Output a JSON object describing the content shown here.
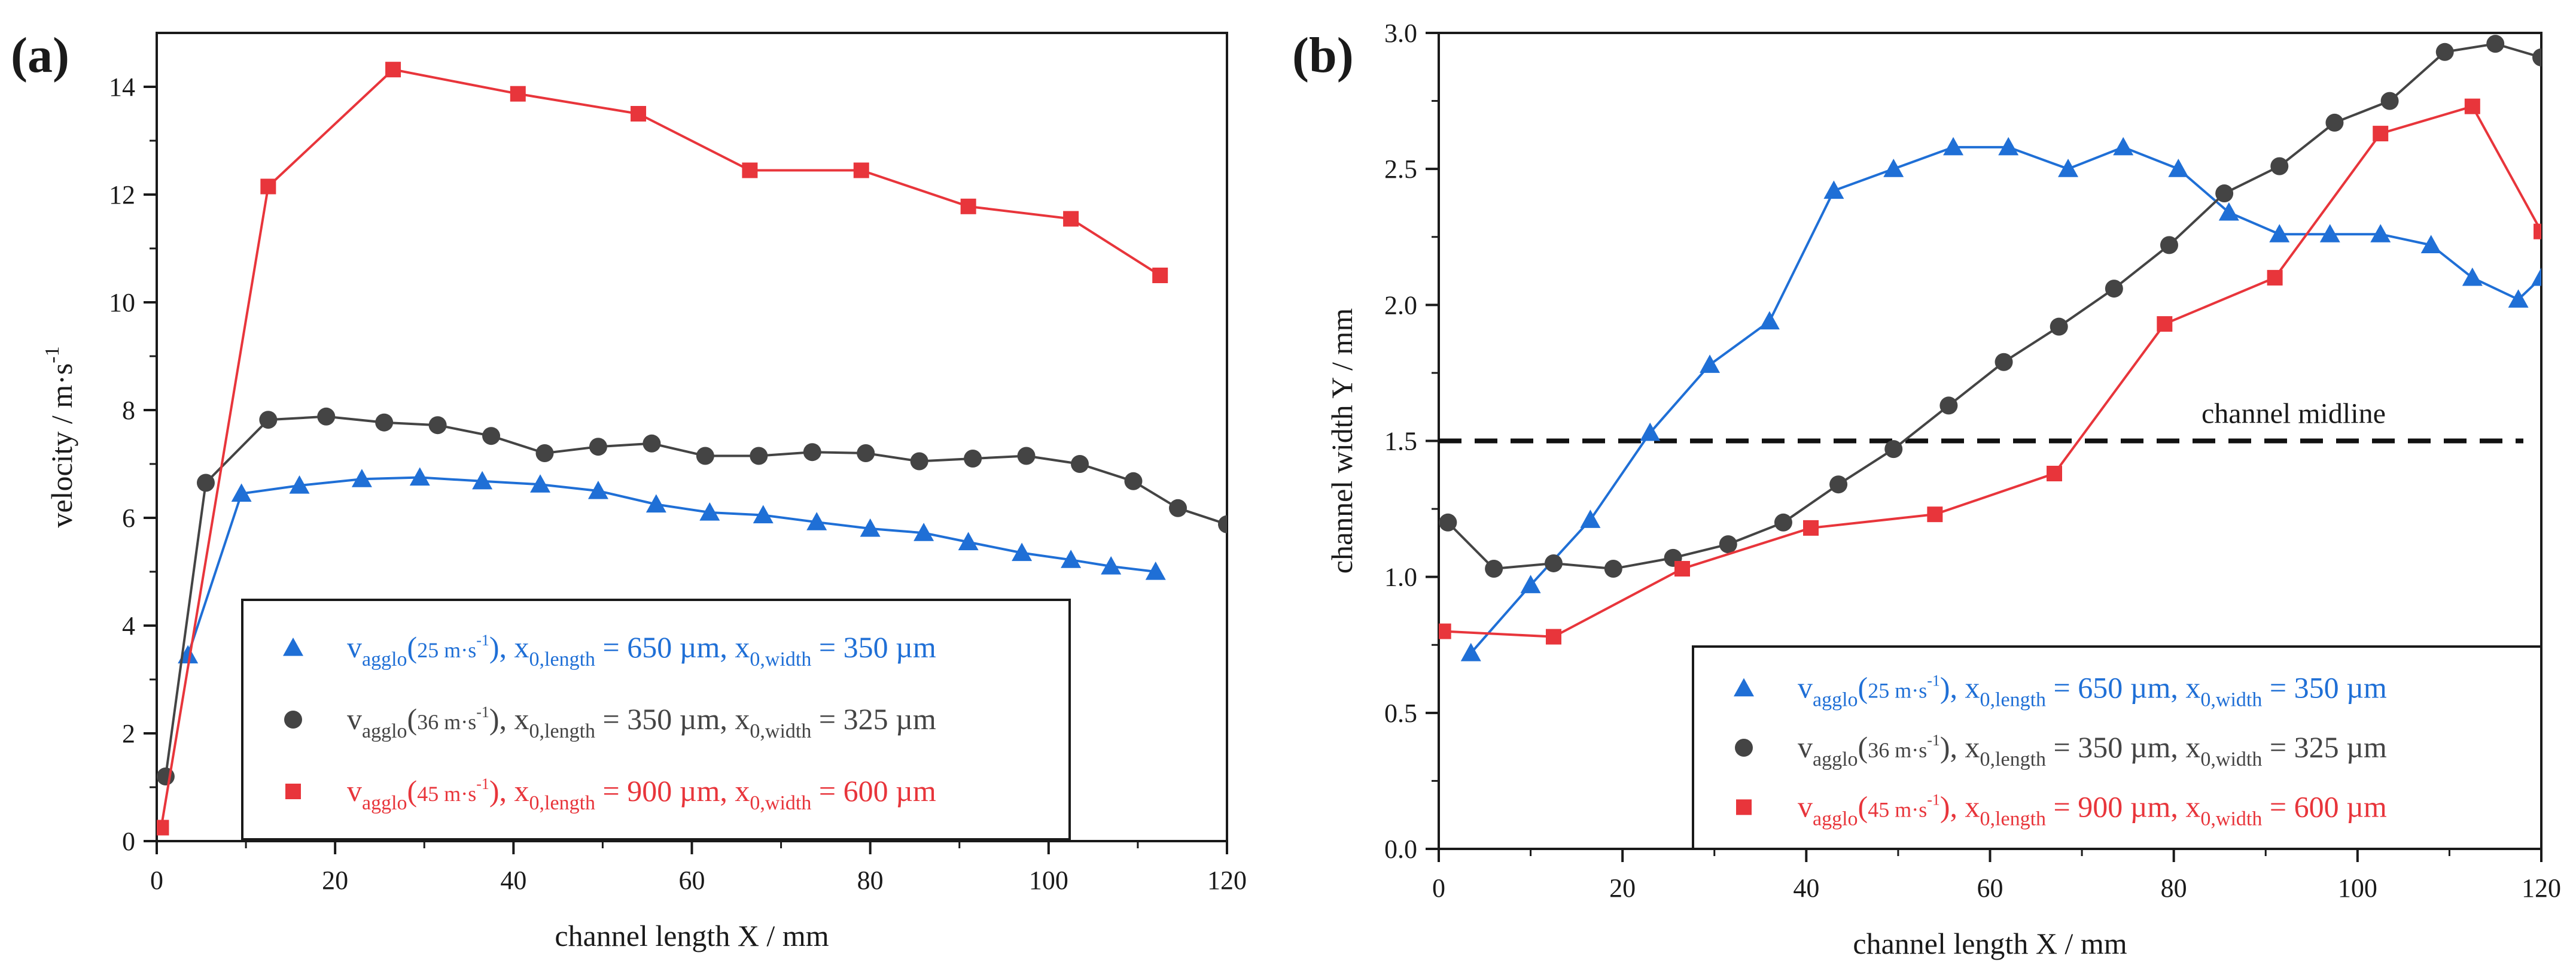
{
  "colors": {
    "blue": "#1f6fd6",
    "gray": "#444444",
    "red": "#e8353b",
    "axis": "#1a1a1a"
  },
  "legend_entries": [
    {
      "id": "blue",
      "base": "v",
      "sub": "agglo",
      "inner": "25 m·s",
      "sup": "-1",
      "l_label": "x",
      "l_sub": "0,length",
      "l_val": " = 650 µm, ",
      "w_label": "x",
      "w_sub": "0,width",
      "w_val": " = 350 µm"
    },
    {
      "id": "gray",
      "base": "v",
      "sub": "agglo",
      "inner": "36 m·s",
      "sup": "-1",
      "l_label": "x",
      "l_sub": "0,length",
      "l_val": " = 350 µm, ",
      "w_label": "x",
      "w_sub": "0,width",
      "w_val": " = 325 µm"
    },
    {
      "id": "red",
      "base": "v",
      "sub": "agglo",
      "inner": "45 m·s",
      "sup": "-1",
      "l_label": "x",
      "l_sub": "0,length",
      "l_val": " = 900 µm, ",
      "w_label": "x",
      "w_sub": "0,width",
      "w_val": " = 600 µm"
    }
  ],
  "chart_data": [
    {
      "panel": "(a)",
      "type": "line",
      "xlabel": "channel length X / mm",
      "ylabel": "velocity / m·s",
      "ylabel_sup": "-1",
      "xlim": [
        0,
        120
      ],
      "ylim": [
        0,
        15
      ],
      "xticks": [
        "0",
        "20",
        "40",
        "60",
        "80",
        "100",
        "120"
      ],
      "yticks": [
        "0",
        "2",
        "4",
        "6",
        "8",
        "10",
        "12",
        "14"
      ],
      "legend_position": "bottom-right",
      "series": [
        {
          "id": "blue",
          "marker": "triangle",
          "x": [
            3.5,
            9.5,
            16,
            23,
            29.5,
            36.5,
            43,
            49.5,
            56,
            62,
            68,
            74,
            80,
            86,
            91,
            97,
            102.5,
            107,
            112
          ],
          "y": [
            3.45,
            6.45,
            6.6,
            6.72,
            6.75,
            6.68,
            6.62,
            6.5,
            6.25,
            6.1,
            6.05,
            5.92,
            5.8,
            5.72,
            5.55,
            5.35,
            5.22,
            5.1,
            5.0
          ]
        },
        {
          "id": "gray",
          "marker": "circle",
          "x": [
            1,
            5.5,
            12.5,
            19,
            25.5,
            31.5,
            37.5,
            43.5,
            49.5,
            55.5,
            61.5,
            67.5,
            73.5,
            79.5,
            85.5,
            91.5,
            97.5,
            103.5,
            109.5,
            114.5,
            120
          ],
          "y": [
            1.2,
            6.65,
            7.82,
            7.88,
            7.77,
            7.72,
            7.52,
            7.2,
            7.32,
            7.38,
            7.15,
            7.15,
            7.22,
            7.2,
            7.05,
            7.1,
            7.15,
            7.0,
            6.68,
            6.18,
            5.88
          ]
        },
        {
          "id": "red",
          "marker": "square",
          "x": [
            0.5,
            12.5,
            26.5,
            40.5,
            54,
            66.5,
            79,
            91,
            102.5,
            112.5
          ],
          "y": [
            0.25,
            12.15,
            14.32,
            13.87,
            13.5,
            12.45,
            12.45,
            11.78,
            11.55,
            10.5
          ]
        }
      ]
    },
    {
      "panel": "(b)",
      "type": "line",
      "xlabel": "channel length X / mm",
      "ylabel": "channel width Y / mm",
      "xlim": [
        0,
        120
      ],
      "ylim": [
        0,
        3.0
      ],
      "xticks": [
        "0",
        "20",
        "40",
        "60",
        "80",
        "100",
        "120"
      ],
      "yticks": [
        "0.0",
        "0.5",
        "1.0",
        "1.5",
        "2.0",
        "2.5",
        "3.0"
      ],
      "legend_position": "bottom-right",
      "annotation": {
        "text": "channel midline",
        "y": 1.5
      },
      "series": [
        {
          "id": "blue",
          "marker": "triangle",
          "x": [
            3.5,
            10,
            16.5,
            23,
            29.5,
            36,
            43,
            49.5,
            56,
            62,
            68.5,
            74.5,
            80.5,
            86,
            91.5,
            97,
            102.5,
            108,
            112.5,
            117.5,
            120
          ],
          "y": [
            0.72,
            0.97,
            1.21,
            1.53,
            1.78,
            1.94,
            2.42,
            2.5,
            2.58,
            2.58,
            2.5,
            2.58,
            2.5,
            2.34,
            2.26,
            2.26,
            2.26,
            2.22,
            2.1,
            2.02,
            2.1
          ]
        },
        {
          "id": "gray",
          "marker": "circle",
          "x": [
            1,
            6,
            12.5,
            19,
            25.5,
            31.5,
            37.5,
            43.5,
            49.5,
            55.5,
            61.5,
            67.5,
            73.5,
            79.5,
            85.5,
            91.5,
            97.5,
            103.5,
            109.5,
            115,
            120
          ],
          "y": [
            1.2,
            1.03,
            1.05,
            1.03,
            1.07,
            1.12,
            1.2,
            1.34,
            1.47,
            1.63,
            1.79,
            1.92,
            2.06,
            2.22,
            2.41,
            2.51,
            2.67,
            2.75,
            2.93,
            2.96,
            2.91
          ]
        },
        {
          "id": "red",
          "marker": "square",
          "x": [
            0.5,
            12.5,
            26.5,
            40.5,
            54,
            67,
            79,
            91,
            102.5,
            112.5,
            120
          ],
          "y": [
            0.8,
            0.78,
            1.03,
            1.18,
            1.23,
            1.38,
            1.93,
            2.1,
            2.63,
            2.73,
            2.27
          ]
        }
      ]
    }
  ]
}
